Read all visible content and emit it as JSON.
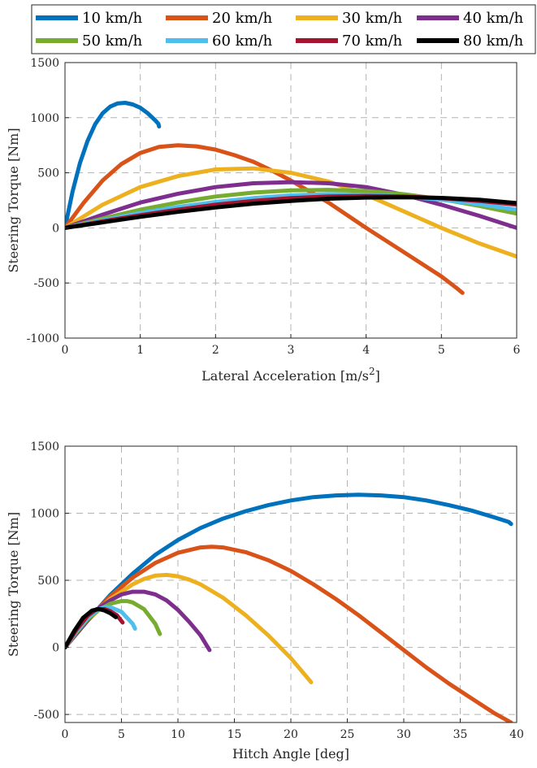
{
  "legend": {
    "entries": [
      {
        "label": "10 km/h",
        "color": "#0072BD"
      },
      {
        "label": "20 km/h",
        "color": "#D95319"
      },
      {
        "label": "30 km/h",
        "color": "#EDB120"
      },
      {
        "label": "40 km/h",
        "color": "#7E2F8E"
      },
      {
        "label": "50 km/h",
        "color": "#77AC30"
      },
      {
        "label": "60 km/h",
        "color": "#4DBEEE"
      },
      {
        "label": "70 km/h",
        "color": "#A2142F"
      },
      {
        "label": "80 km/h",
        "color": "#000000"
      }
    ]
  },
  "chart_data": [
    {
      "type": "line",
      "xlabel": "Lateral Acceleration [m/s",
      "xlabel_sup": "2",
      "xlabel_end": "]",
      "ylabel": "Steering Torque [Nm]",
      "xlim": [
        0,
        6
      ],
      "ylim": [
        -1000,
        1500
      ],
      "xticks": [
        0,
        1,
        2,
        3,
        4,
        5,
        6
      ],
      "yticks": [
        -1000,
        -500,
        0,
        500,
        1000,
        1500
      ],
      "xtick_labels": [
        "0",
        "1",
        "2",
        "3",
        "4",
        "5",
        "6"
      ],
      "ytick_labels": [
        "-1000",
        "-500",
        "0",
        "500",
        "1000",
        "1500"
      ],
      "grid": true,
      "series": [
        {
          "name": "10 km/h",
          "x": [
            0,
            0.1,
            0.2,
            0.3,
            0.4,
            0.5,
            0.6,
            0.7,
            0.8,
            0.9,
            1.0,
            1.1,
            1.2,
            1.24,
            1.25
          ],
          "y": [
            0,
            330,
            590,
            790,
            940,
            1040,
            1100,
            1130,
            1135,
            1120,
            1090,
            1040,
            975,
            945,
            920
          ]
        },
        {
          "name": "20 km/h",
          "x": [
            0,
            0.25,
            0.5,
            0.75,
            1.0,
            1.25,
            1.5,
            1.75,
            2.0,
            2.25,
            2.5,
            2.75,
            3.0,
            3.5,
            4.0,
            4.5,
            5.0,
            5.2,
            5.28
          ],
          "y": [
            0,
            230,
            430,
            580,
            680,
            735,
            750,
            740,
            710,
            660,
            600,
            520,
            430,
            230,
            0,
            -220,
            -440,
            -545,
            -590
          ]
        },
        {
          "name": "30 km/h",
          "x": [
            0,
            0.5,
            1.0,
            1.5,
            2.0,
            2.5,
            3.0,
            3.5,
            4.0,
            4.5,
            5.0,
            5.5,
            6.0
          ],
          "y": [
            0,
            210,
            370,
            470,
            530,
            540,
            500,
            420,
            300,
            150,
            0,
            -140,
            -260
          ]
        },
        {
          "name": "40 km/h",
          "x": [
            0,
            0.5,
            1.0,
            1.5,
            2.0,
            2.5,
            3.0,
            3.5,
            4.0,
            4.5,
            5.0,
            5.5,
            6.0
          ],
          "y": [
            0,
            120,
            230,
            310,
            370,
            405,
            415,
            405,
            370,
            300,
            210,
            110,
            0
          ]
        },
        {
          "name": "50 km/h",
          "x": [
            0,
            0.5,
            1.0,
            1.5,
            2.0,
            2.5,
            3.0,
            3.5,
            4.0,
            4.5,
            5.0,
            5.5,
            6.0
          ],
          "y": [
            0,
            85,
            165,
            230,
            285,
            320,
            340,
            345,
            335,
            305,
            260,
            200,
            130
          ]
        },
        {
          "name": "60 km/h",
          "x": [
            0,
            0.5,
            1.0,
            1.5,
            2.0,
            2.5,
            3.0,
            3.5,
            4.0,
            4.5,
            5.0,
            5.5,
            6.0
          ],
          "y": [
            0,
            70,
            135,
            190,
            235,
            270,
            295,
            305,
            300,
            285,
            255,
            215,
            165
          ]
        },
        {
          "name": "70 km/h",
          "x": [
            0,
            0.5,
            1.0,
            1.5,
            2.0,
            2.5,
            3.0,
            3.5,
            4.0,
            4.5,
            5.0,
            5.5,
            6.0
          ],
          "y": [
            0,
            60,
            115,
            165,
            210,
            245,
            270,
            285,
            290,
            285,
            270,
            245,
            210
          ]
        },
        {
          "name": "80 km/h",
          "x": [
            0,
            0.5,
            1.0,
            1.5,
            2.0,
            2.5,
            3.0,
            3.5,
            4.0,
            4.5,
            5.0,
            5.5,
            6.0
          ],
          "y": [
            0,
            50,
            100,
            145,
            185,
            220,
            245,
            265,
            275,
            278,
            272,
            255,
            225
          ]
        }
      ]
    },
    {
      "type": "line",
      "xlabel": "Hitch Angle [deg]",
      "ylabel": "Steering Torque [Nm]",
      "xlim": [
        0,
        40
      ],
      "ylim": [
        -560,
        1500
      ],
      "xticks": [
        0,
        5,
        10,
        15,
        20,
        25,
        30,
        35,
        40
      ],
      "yticks": [
        -500,
        0,
        500,
        1000,
        1500
      ],
      "xtick_labels": [
        "0",
        "5",
        "10",
        "15",
        "20",
        "25",
        "30",
        "35",
        "40"
      ],
      "ytick_labels": [
        "-500",
        "0",
        "500",
        "1000",
        "1500"
      ],
      "grid": true,
      "series": [
        {
          "name": "10 km/h",
          "x": [
            0,
            2,
            4,
            6,
            8,
            10,
            12,
            14,
            16,
            18,
            20,
            22,
            24,
            26,
            28,
            30,
            32,
            34,
            36,
            38,
            39.3,
            39.5
          ],
          "y": [
            0,
            200,
            390,
            550,
            690,
            800,
            890,
            960,
            1015,
            1060,
            1095,
            1120,
            1133,
            1138,
            1133,
            1120,
            1095,
            1060,
            1020,
            970,
            935,
            920
          ]
        },
        {
          "name": "20 km/h",
          "x": [
            0,
            2,
            4,
            6,
            8,
            10,
            12,
            13,
            14,
            16,
            18,
            20,
            22,
            24,
            26,
            28,
            30,
            32,
            34,
            36,
            38,
            39.5
          ],
          "y": [
            0,
            200,
            380,
            520,
            630,
            705,
            745,
            750,
            745,
            710,
            650,
            570,
            470,
            360,
            240,
            110,
            -20,
            -150,
            -270,
            -380,
            -490,
            -560
          ]
        },
        {
          "name": "30 km/h",
          "x": [
            0,
            2,
            4,
            6,
            7,
            8,
            9,
            10,
            11,
            12,
            14,
            16,
            18,
            20,
            21.8
          ],
          "y": [
            0,
            200,
            360,
            470,
            510,
            535,
            540,
            530,
            505,
            470,
            370,
            240,
            90,
            -80,
            -260
          ]
        },
        {
          "name": "40 km/h",
          "x": [
            0,
            2,
            3,
            4,
            5,
            6,
            7,
            8,
            9,
            10,
            11,
            12,
            12.8
          ],
          "y": [
            0,
            200,
            290,
            350,
            395,
            415,
            415,
            395,
            350,
            280,
            190,
            90,
            -20
          ]
        },
        {
          "name": "50 km/h",
          "x": [
            0,
            1,
            2,
            3,
            4,
            5,
            5.5,
            6,
            7,
            8,
            8.4
          ],
          "y": [
            0,
            110,
            210,
            280,
            325,
            345,
            345,
            335,
            285,
            175,
            100
          ]
        },
        {
          "name": "60 km/h",
          "x": [
            0,
            1,
            2,
            3,
            3.5,
            4,
            5,
            6,
            6.2
          ],
          "y": [
            0,
            120,
            220,
            285,
            300,
            300,
            265,
            175,
            140
          ]
        },
        {
          "name": "70 km/h",
          "x": [
            0,
            1,
            2,
            2.8,
            3.5,
            4,
            4.6,
            5.1
          ],
          "y": [
            0,
            130,
            235,
            285,
            285,
            270,
            240,
            185
          ]
        },
        {
          "name": "80 km/h",
          "x": [
            0,
            0.8,
            1.6,
            2.4,
            3.0,
            3.5,
            4.0,
            4.5
          ],
          "y": [
            0,
            120,
            220,
            275,
            285,
            275,
            255,
            225
          ]
        }
      ]
    }
  ]
}
